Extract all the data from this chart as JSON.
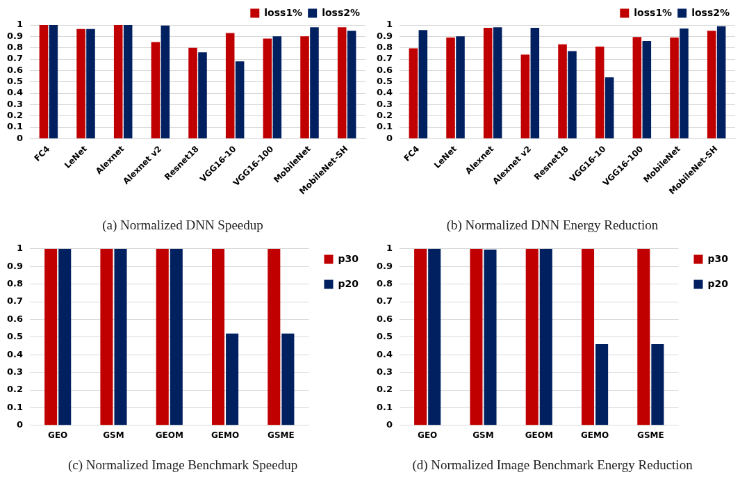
{
  "chart_data": [
    {
      "type": "bar",
      "title": "(a) Normalized DNN Speedup",
      "categories": [
        "FC4",
        "LeNet",
        "Alexnet",
        "Alexnet v2",
        "Resnet18",
        "VGG16-10",
        "VGG16-100",
        "MobileNet",
        "MobileNet-SH"
      ],
      "series": [
        {
          "name": "loss1%",
          "color": "#c00000",
          "values": [
            1,
            0.965,
            1,
            0.85,
            0.8,
            0.93,
            0.88,
            0.9,
            0.98
          ]
        },
        {
          "name": "loss2%",
          "color": "#002060",
          "values": [
            1,
            0.965,
            1,
            0.995,
            0.76,
            0.68,
            0.9,
            0.98,
            0.95
          ]
        }
      ],
      "ylim": [
        0,
        1
      ],
      "yticks": [
        0,
        0.1,
        0.2,
        0.3,
        0.4,
        0.5,
        0.6,
        0.7,
        0.8,
        0.9,
        1
      ],
      "grid": "y",
      "legend": "top right"
    },
    {
      "type": "bar",
      "title": "(b) Normalized DNN Energy Reduction",
      "categories": [
        "FC4",
        "LeNet",
        "Alexnet",
        "Alexnet v2",
        "Resnet18",
        "VGG16-10",
        "VGG16-100",
        "MobileNet",
        "MobileNet-SH"
      ],
      "series": [
        {
          "name": "loss1%",
          "color": "#c00000",
          "values": [
            0.795,
            0.89,
            0.975,
            0.74,
            0.83,
            0.81,
            0.895,
            0.89,
            0.95
          ]
        },
        {
          "name": "loss2%",
          "color": "#002060",
          "values": [
            0.955,
            0.9,
            0.98,
            0.975,
            0.77,
            0.54,
            0.86,
            0.97,
            0.99
          ]
        }
      ],
      "ylim": [
        0,
        1
      ],
      "yticks": [
        0,
        0.1,
        0.2,
        0.3,
        0.4,
        0.5,
        0.6,
        0.7,
        0.8,
        0.9,
        1
      ],
      "grid": "y",
      "legend": "top right"
    },
    {
      "type": "bar",
      "title": "(c) Normalized Image Benchmark Speedup",
      "categories": [
        "GEO",
        "GSM",
        "GEOM",
        "GEMO",
        "GSME"
      ],
      "series": [
        {
          "name": "p30",
          "color": "#c00000",
          "values": [
            1,
            1,
            1,
            1,
            1
          ]
        },
        {
          "name": "p20",
          "color": "#002060",
          "values": [
            1,
            1,
            1,
            0.52,
            0.52
          ]
        }
      ],
      "ylim": [
        0,
        1
      ],
      "yticks": [
        0,
        0.1,
        0.2,
        0.3,
        0.4,
        0.5,
        0.6,
        0.7,
        0.8,
        0.9,
        1
      ],
      "grid": "y",
      "legend": "right"
    },
    {
      "type": "bar",
      "title": "(d) Normalized Image Benchmark Energy Reduction",
      "categories": [
        "GEO",
        "GSM",
        "GEOM",
        "GEMO",
        "GSME"
      ],
      "series": [
        {
          "name": "p30",
          "color": "#c00000",
          "values": [
            1,
            1,
            1,
            1,
            1
          ]
        },
        {
          "name": "p20",
          "color": "#002060",
          "values": [
            1,
            0.995,
            1,
            0.46,
            0.46
          ]
        }
      ],
      "ylim": [
        0,
        1
      ],
      "yticks": [
        0,
        0.1,
        0.2,
        0.3,
        0.4,
        0.5,
        0.6,
        0.7,
        0.8,
        0.9,
        1
      ],
      "grid": "y",
      "legend": "right"
    }
  ]
}
